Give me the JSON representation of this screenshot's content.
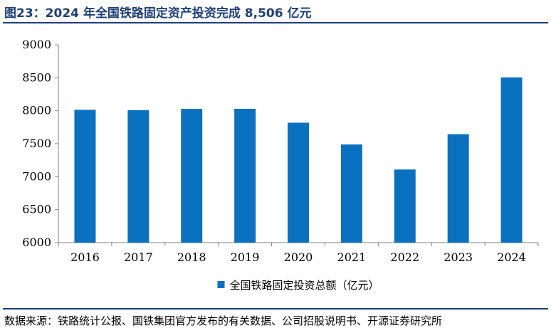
{
  "header": {
    "title": "图23：2024 年全国铁路固定资产投资完成 8,506 亿元"
  },
  "footer": {
    "source": "数据来源：铁路统计公报、国铁集团官方发布的有关数据、公司招股说明书、开源证券研究所"
  },
  "chart_data": {
    "type": "bar",
    "categories": [
      "2016",
      "2017",
      "2018",
      "2019",
      "2020",
      "2021",
      "2022",
      "2023",
      "2024"
    ],
    "series": [
      {
        "name": "全国铁路固定投资总额（亿元）",
        "values": [
          8015,
          8010,
          8028,
          8029,
          7819,
          7489,
          7109,
          7645,
          8506
        ],
        "color": "#0a70c0"
      }
    ],
    "ylim": [
      6000,
      9000
    ],
    "yticks": [
      6000,
      6500,
      7000,
      7500,
      8000,
      8500,
      9000
    ],
    "grid": false,
    "legend": "bottom-center"
  }
}
